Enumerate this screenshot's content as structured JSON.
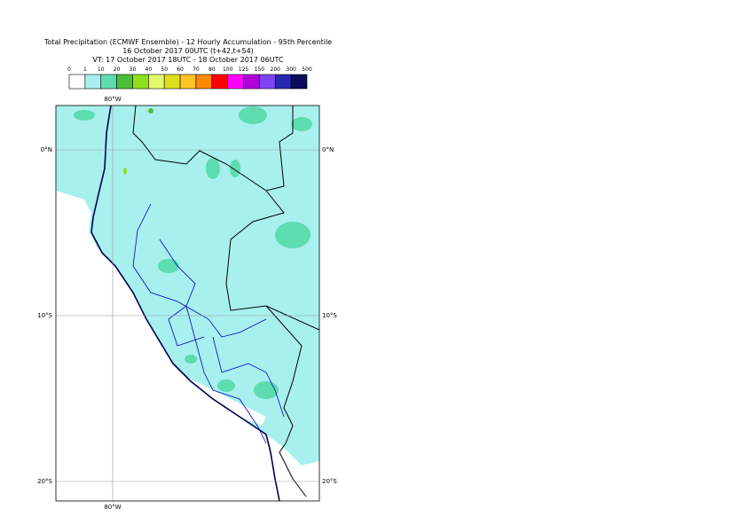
{
  "title": [
    "Total Precipitation (ECMWF Ensemble) - 12 Hourly Accumulation - 95th Percentile",
    "16 October 2017 00UTC (t+42,t+54)",
    "VT: 17 October 2017 18UTC - 18 October 2017 06UTC"
  ],
  "legend": {
    "labels": [
      "0",
      "1",
      "10",
      "20",
      "30",
      "40",
      "50",
      "60",
      "70",
      "80",
      "100",
      "125",
      "150",
      "200",
      "300",
      "500"
    ],
    "colors": [
      "#ffffff",
      "#a8f0ee",
      "#5ddcb0",
      "#4cbf38",
      "#8fe01e",
      "#e2fa6a",
      "#dede1e",
      "#ffc426",
      "#ff8a00",
      "#ff0000",
      "#ff00ff",
      "#b000d8",
      "#7a46f0",
      "#2828b0",
      "#0c0c58"
    ]
  },
  "grid": {
    "lon_labels": [
      "80°W",
      "80°W"
    ],
    "lat_labels": [
      "0°N",
      "10°S",
      "20°S",
      "0°N",
      "10°S",
      "20°S"
    ]
  }
}
